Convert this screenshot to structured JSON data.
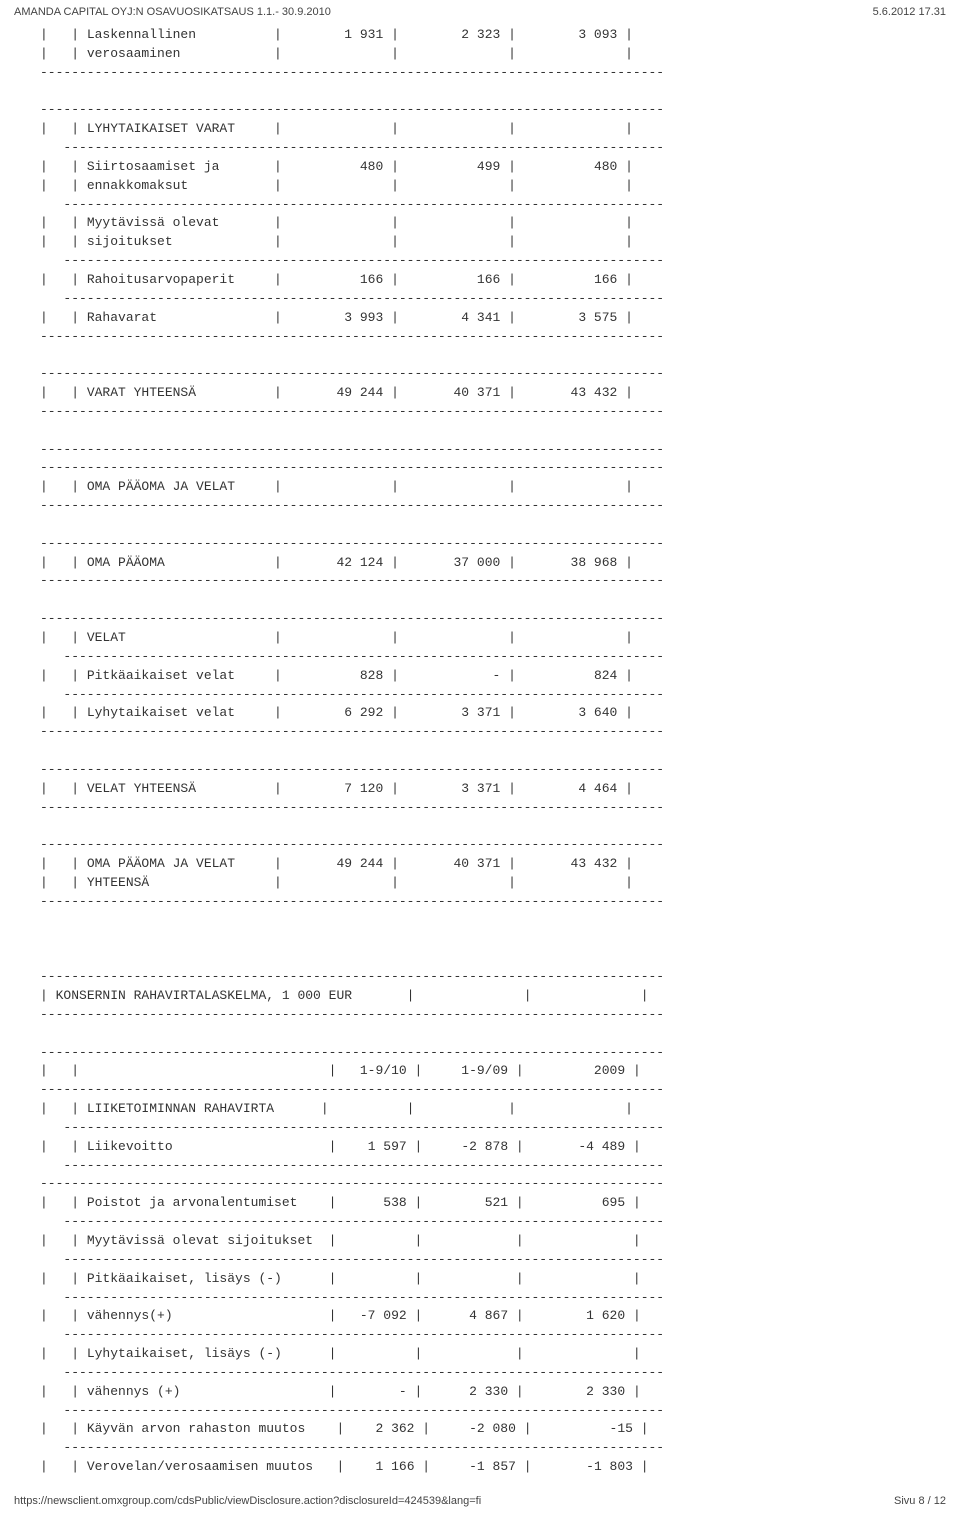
{
  "header": {
    "left": "AMANDA CAPITAL OYJ:N OSAVUOSIKATSAUS 1.1.- 30.9.2010",
    "right": "5.6.2012 17.31"
  },
  "footer": {
    "url": "https://newsclient.omxgroup.com/cdsPublic/viewDisclosure.action?disclosureId=424539&lang=fi",
    "page": "Sivu 8 / 12"
  },
  "labels": {
    "laskennallinen1": "Laskennallinen",
    "laskennallinen2": "verosaaminen",
    "lyhytaikaiset_varat": "LYHYTAIKAISET VARAT",
    "siirtosaamiset1": "Siirtosaamiset ja",
    "siirtosaamiset2": "ennakkomaksut",
    "myytavissa1": "Myytävissä olevat",
    "myytavissa2": "sijoitukset",
    "rahoitusarvopaperit": "Rahoitusarvopaperit",
    "rahavarat": "Rahavarat",
    "varat_yhteensa": "VARAT YHTEENSÄ",
    "oma_paaoma_ja_velat": "OMA PÄÄOMA JA VELAT",
    "oma_paaoma": "OMA PÄÄOMA",
    "velat": "VELAT",
    "pitka_velat": "Pitkäaikaiset velat",
    "lyhyt_velat": "Lyhytaikaiset velat",
    "velat_yhteensa": "VELAT YHTEENSÄ",
    "opjv1": "OMA PÄÄOMA JA VELAT",
    "opjv2": "YHTEENSÄ",
    "section2_title": "KONSERNIN RAHAVIRTALASKELMA, 1 000 EUR",
    "liiketoiminnan": "LIIKETOIMINNAN RAHAVIRTA",
    "liikevoitto": "Liikevoitto",
    "poistot": "Poistot ja arvonalentumiset",
    "myytavissa_sijoitukset": "Myytävissä olevat sijoitukset",
    "pitka_lisays": "Pitkäaikaiset, lisäys (-)",
    "vahennys1": "vähennys(+)",
    "lyhyt_lisays": "Lyhytaikaiset, lisäys (-)",
    "vahennys2": "vähennys (+)",
    "kayvan": "Käyvän arvon rahaston muutos",
    "verovelan": "Verovelan/verosaamisen muutos"
  },
  "values": {
    "laskennallinen": {
      "c1": "1 931",
      "c2": "2 323",
      "c3": "3 093"
    },
    "siirtosaamiset": {
      "c1": "480",
      "c2": "499",
      "c3": "480"
    },
    "rahoitusarvopaperit": {
      "c1": "166",
      "c2": "166",
      "c3": "166"
    },
    "rahavarat": {
      "c1": "3 993",
      "c2": "4 341",
      "c3": "3 575"
    },
    "varat_yhteensa": {
      "c1": "49 244",
      "c2": "40 371",
      "c3": "43 432"
    },
    "oma_paaoma": {
      "c1": "42 124",
      "c2": "37 000",
      "c3": "38 968"
    },
    "pitka_velat": {
      "c1": "828",
      "c2": "-",
      "c3": "824"
    },
    "lyhyt_velat": {
      "c1": "6 292",
      "c2": "3 371",
      "c3": "3 640"
    },
    "velat_yhteensa": {
      "c1": "7 120",
      "c2": "3 371",
      "c3": "4 464"
    },
    "opjv": {
      "c1": "49 244",
      "c2": "40 371",
      "c3": "43 432"
    },
    "headers2": {
      "c1": "1-9/10",
      "c2": "1-9/09",
      "c3": "2009"
    },
    "liikevoitto": {
      "c1": "1 597",
      "c2": "-2 878",
      "c3": "-4 489"
    },
    "poistot": {
      "c1": "538",
      "c2": "521",
      "c3": "695"
    },
    "vahennys1": {
      "c1": "-7 092",
      "c2": "4 867",
      "c3": "1 620"
    },
    "vahennys2": {
      "c1": "-",
      "c2": "2 330",
      "c3": "2 330"
    },
    "kayvan": {
      "c1": "2 362",
      "c2": "-2 080",
      "c3": "-15"
    },
    "verovelan": {
      "c1": "1 166",
      "c2": "-1 857",
      "c3": "-1 803"
    }
  }
}
